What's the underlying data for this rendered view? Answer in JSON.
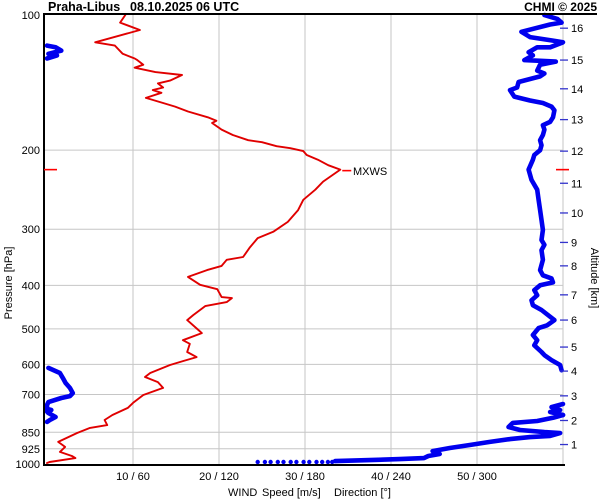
{
  "header": {
    "station": "Praha-Libus",
    "datetime": "08.10.2025 06 UTC",
    "credit": "CHMI © 2025"
  },
  "colors": {
    "speed_curve": "#e00000",
    "direction_curve": "#0000ee",
    "red_text": "#ff0000",
    "axis_blue": "#3333cc",
    "grid": "#c6c6c6",
    "frame": "#000000"
  },
  "axes": {
    "pressure": {
      "title": "Pressure [hPa]",
      "unit": "hPa",
      "scale": "log",
      "range": [
        100,
        1000
      ],
      "ticks": [
        100,
        200,
        300,
        400,
        500,
        600,
        700,
        850,
        925,
        1000
      ]
    },
    "altitude": {
      "title": "Altitude [km]",
      "unit": "km",
      "ticks": [
        {
          "km": 16,
          "hPa": 107
        },
        {
          "km": 15,
          "hPa": 126
        },
        {
          "km": 14,
          "hPa": 146
        },
        {
          "km": 13,
          "hPa": 171
        },
        {
          "km": 12,
          "hPa": 201
        },
        {
          "km": 11,
          "hPa": 237
        },
        {
          "km": 10,
          "hPa": 276
        },
        {
          "km": 9,
          "hPa": 321
        },
        {
          "km": 8,
          "hPa": 362
        },
        {
          "km": 7,
          "hPa": 420
        },
        {
          "km": 6,
          "hPa": 478
        },
        {
          "km": 5,
          "hPa": 549
        },
        {
          "km": 4,
          "hPa": 621
        },
        {
          "km": 3,
          "hPa": 705
        },
        {
          "km": 2,
          "hPa": 800
        },
        {
          "km": 1,
          "hPa": 905
        }
      ]
    },
    "wind": {
      "label": "WIND",
      "speed_label": "Speed [m/s]",
      "direction_label": "Direction [°]",
      "speed_range": [
        0,
        60
      ],
      "direction_range": [
        0,
        360
      ],
      "ticks": [
        {
          "speed": 10,
          "direction": 60,
          "label": "10 / 60"
        },
        {
          "speed": 20,
          "direction": 120,
          "label": "20 / 120"
        },
        {
          "speed": 30,
          "direction": 180,
          "label": "30 / 180"
        },
        {
          "speed": 40,
          "direction": 240,
          "label": "40 / 240"
        },
        {
          "speed": 50,
          "direction": 300,
          "label": "50 / 300"
        }
      ]
    }
  },
  "annotation": {
    "mxws": "MXWS",
    "mxws_hPa": 221,
    "mxws_speed_ms": 34.1
  },
  "chart_data": {
    "type": "line",
    "title": "Praha-Libus 08.10.2025 06 UTC — vertical wind profile sounding",
    "y_axis": {
      "label": "Pressure [hPa]",
      "scale": "log",
      "range": [
        100,
        1000
      ],
      "secondary_label": "Altitude [km]"
    },
    "x_axis": {
      "speed_range_ms": [
        0,
        60
      ],
      "direction_range_deg": [
        0,
        360
      ]
    },
    "series": [
      {
        "name": "Wind speed",
        "unit": "m/s",
        "color_key": "speed_curve",
        "points": [
          [
            9.1,
            100
          ],
          [
            8.5,
            104
          ],
          [
            10.8,
            108
          ],
          [
            5.6,
            115
          ],
          [
            7.9,
            117
          ],
          [
            8.8,
            122
          ],
          [
            10.2,
            125
          ],
          [
            10.5,
            126
          ],
          [
            11.2,
            129
          ],
          [
            10.2,
            131
          ],
          [
            12.6,
            134
          ],
          [
            15.7,
            136
          ],
          [
            14.3,
            140
          ],
          [
            12.9,
            142
          ],
          [
            13.5,
            145
          ],
          [
            12.3,
            147
          ],
          [
            13.3,
            149
          ],
          [
            11.5,
            153
          ],
          [
            13.5,
            157
          ],
          [
            14.9,
            160
          ],
          [
            16.4,
            164
          ],
          [
            18.7,
            169
          ],
          [
            19.7,
            172
          ],
          [
            19.2,
            174
          ],
          [
            20.3,
            180
          ],
          [
            21.6,
            185
          ],
          [
            23.4,
            190
          ],
          [
            25,
            192
          ],
          [
            26.7,
            196
          ],
          [
            28.3,
            198
          ],
          [
            29.8,
            201
          ],
          [
            30.2,
            205
          ],
          [
            31.5,
            210
          ],
          [
            32.7,
            216
          ],
          [
            34.1,
            221
          ],
          [
            32.1,
            235
          ],
          [
            31.2,
            245
          ],
          [
            29.8,
            258
          ],
          [
            29.2,
            272
          ],
          [
            28,
            289
          ],
          [
            26.3,
            304
          ],
          [
            24.5,
            314
          ],
          [
            23.6,
            329
          ],
          [
            22.8,
            346
          ],
          [
            20.9,
            351
          ],
          [
            20.3,
            362
          ],
          [
            18.6,
            370
          ],
          [
            16.4,
            383
          ],
          [
            17.8,
            399
          ],
          [
            19.8,
            408
          ],
          [
            20.3,
            425
          ],
          [
            21.5,
            427
          ],
          [
            20.9,
            436
          ],
          [
            18.4,
            445
          ],
          [
            17,
            466
          ],
          [
            16.3,
            478
          ],
          [
            17.6,
            503
          ],
          [
            18,
            511
          ],
          [
            15.8,
            530
          ],
          [
            16.6,
            540
          ],
          [
            16.3,
            563
          ],
          [
            17.4,
            578
          ],
          [
            15.8,
            590
          ],
          [
            14.3,
            602
          ],
          [
            12,
            627
          ],
          [
            11.4,
            640
          ],
          [
            12.9,
            657
          ],
          [
            13.5,
            677
          ],
          [
            11.2,
            702
          ],
          [
            10,
            731
          ],
          [
            9.4,
            750
          ],
          [
            7.6,
            778
          ],
          [
            6.7,
            798
          ],
          [
            7,
            819
          ],
          [
            5,
            831
          ],
          [
            3.5,
            853
          ],
          [
            1.3,
            893
          ],
          [
            2.1,
            916
          ],
          [
            1.5,
            940
          ],
          [
            2.9,
            960
          ],
          [
            3.3,
            970
          ],
          [
            0.3,
            990
          ],
          [
            0,
            995
          ]
        ]
      },
      {
        "name": "Wind direction",
        "unit": "deg",
        "color_key": "direction_curve",
        "segments": [
          [
            [
              0,
              117
            ],
            [
              6,
              118
            ],
            [
              10,
              120
            ],
            [
              1,
              122
            ],
            [
              7,
              123
            ],
            [
              0,
              125
            ]
          ],
          [
            [
              347,
              100
            ],
            [
              356,
              102
            ],
            [
              359,
              104
            ],
            [
              351,
              105
            ],
            [
              331,
              109
            ],
            [
              337,
              112
            ],
            [
              353,
              114
            ],
            [
              360,
              115
            ],
            [
              351,
              118
            ],
            [
              342,
              118
            ],
            [
              336,
              121
            ],
            [
              339,
              123
            ],
            [
              333,
              126
            ],
            [
              355,
              127
            ],
            [
              344,
              129
            ],
            [
              342,
              133
            ],
            [
              347,
              135
            ],
            [
              344,
              137
            ],
            [
              329,
              141
            ],
            [
              328,
              145
            ],
            [
              323,
              147
            ],
            [
              326,
              152
            ],
            [
              337,
              155
            ],
            [
              346,
              157
            ],
            [
              352,
              160
            ],
            [
              354,
              163
            ],
            [
              353,
              169
            ],
            [
              351,
              173
            ],
            [
              346,
              176
            ],
            [
              347,
              180
            ],
            [
              346,
              185
            ],
            [
              344,
              190
            ],
            [
              345,
              195
            ],
            [
              344,
              200
            ],
            [
              340,
              205
            ],
            [
              339,
              210
            ],
            [
              336,
              221
            ],
            [
              338,
              233
            ],
            [
              342,
              245
            ],
            [
              343,
              258
            ],
            [
              344,
              272
            ],
            [
              345,
              286
            ],
            [
              346,
              301
            ],
            [
              345,
              317
            ],
            [
              347,
              325
            ],
            [
              345,
              334
            ],
            [
              346,
              351
            ],
            [
              344,
              370
            ],
            [
              346,
              380
            ],
            [
              352,
              386
            ],
            [
              353,
              394
            ],
            [
              344,
              400
            ],
            [
              340,
              410
            ],
            [
              342,
              421
            ],
            [
              338,
              432
            ],
            [
              339,
              443
            ],
            [
              345,
              454
            ],
            [
              354,
              478
            ],
            [
              349,
              491
            ],
            [
              343,
              498
            ],
            [
              339,
              516
            ],
            [
              342,
              530
            ],
            [
              340,
              544
            ],
            [
              345,
              563
            ],
            [
              347,
              572
            ],
            [
              352,
              587
            ],
            [
              358,
              602
            ],
            [
              359,
              618
            ]
          ],
          [
            [
              1,
              611
            ],
            [
              9,
              627
            ],
            [
              11,
              643
            ],
            [
              13,
              660
            ],
            [
              16,
              677
            ],
            [
              18,
              695
            ],
            [
              16,
              706
            ],
            [
              10,
              713
            ],
            [
              1,
              728
            ],
            [
              0,
              739
            ],
            [
              0,
              754
            ],
            [
              3,
              758
            ],
            [
              0,
              764
            ],
            [
              1,
              770
            ],
            [
              6,
              786
            ],
            [
              2,
              798
            ],
            [
              0,
              806
            ]
          ],
          [
            [
              360,
              735
            ],
            [
              352,
              747
            ],
            [
              358,
              758
            ],
            [
              351,
              766
            ],
            [
              360,
              778
            ]
          ],
          [
            [
              360,
              778
            ],
            [
              353,
              789
            ],
            [
              342,
              802
            ],
            [
              325,
              810
            ],
            [
              322,
              827
            ],
            [
              330,
              840
            ],
            [
              347,
              849
            ],
            [
              358,
              853
            ],
            [
              351,
              866
            ],
            [
              337,
              871
            ],
            [
              323,
              880
            ],
            [
              309,
              893
            ],
            [
              295,
              907
            ],
            [
              281,
              921
            ],
            [
              269,
              936
            ],
            [
              274,
              950
            ],
            [
              266,
              960
            ],
            [
              263,
              970
            ],
            [
              246,
              975
            ],
            [
              225,
              980
            ],
            [
              201,
              985
            ]
          ]
        ],
        "dots": [
          [
            147,
            990
          ],
          [
            152,
            990
          ],
          [
            156,
            990
          ],
          [
            161,
            990
          ],
          [
            165,
            990
          ],
          [
            170,
            990
          ],
          [
            174,
            990
          ],
          [
            179,
            990
          ],
          [
            183,
            990
          ],
          [
            188,
            990
          ],
          [
            192,
            990
          ],
          [
            196,
            990
          ],
          [
            199,
            990
          ]
        ]
      }
    ]
  }
}
